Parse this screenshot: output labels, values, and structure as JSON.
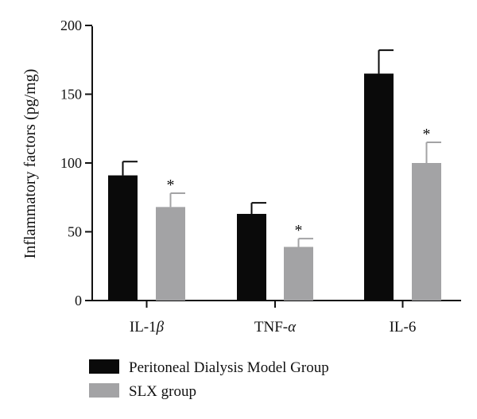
{
  "chart_data": {
    "type": "bar",
    "categories": [
      "IL-1",
      "TNF-",
      "IL-6"
    ],
    "category_greek": [
      "β",
      "α",
      ""
    ],
    "ylabel": "Inflammatory factors (pg/mg)",
    "ylim": [
      0,
      200
    ],
    "yticks": [
      0,
      50,
      100,
      150,
      200
    ],
    "series": [
      {
        "name": "Peritoneal Dialysis Model Group",
        "color": "#0a0a0a",
        "values": [
          91,
          63,
          165
        ],
        "errors": [
          10,
          8,
          17
        ],
        "significance": [
          "",
          "",
          ""
        ]
      },
      {
        "name": "SLX group",
        "color": "#a3a3a5",
        "values": [
          68,
          39,
          100
        ],
        "errors": [
          10,
          6,
          15
        ],
        "significance": [
          "*",
          "*",
          "*"
        ]
      }
    ],
    "legend_position": "bottom-left"
  }
}
